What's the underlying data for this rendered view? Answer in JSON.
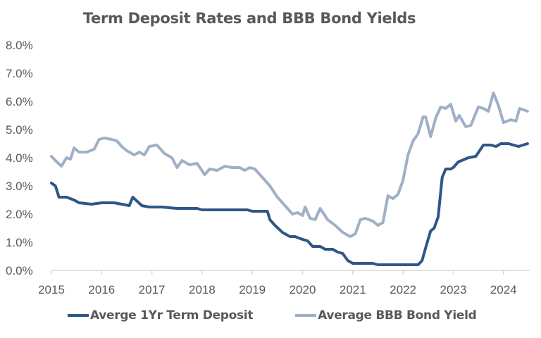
{
  "chart_data": {
    "type": "line",
    "title": "Term Deposit Rates and BBB Bond Yields",
    "xlabel": "",
    "ylabel": "",
    "ylim": [
      0,
      8
    ],
    "xlim": [
      2015,
      2024.5
    ],
    "grid": false,
    "legend_position": "bottom",
    "y_ticks": [
      "0.0%",
      "1.0%",
      "2.0%",
      "3.0%",
      "4.0%",
      "5.0%",
      "6.0%",
      "7.0%",
      "8.0%"
    ],
    "x_ticks": [
      "2015",
      "2016",
      "2017",
      "2018",
      "2019",
      "2020",
      "2021",
      "2022",
      "2023",
      "2024"
    ],
    "series": [
      {
        "name": "Averge 1Yr Term Deposit",
        "color": "#2e5788",
        "x": [
          2015.0,
          2015.08,
          2015.15,
          2015.3,
          2015.45,
          2015.55,
          2015.8,
          2016.0,
          2016.25,
          2016.4,
          2016.55,
          2016.62,
          2016.8,
          2016.95,
          2017.2,
          2017.5,
          2017.6,
          2017.9,
          2018.0,
          2018.3,
          2018.6,
          2018.9,
          2019.0,
          2019.1,
          2019.3,
          2019.35,
          2019.45,
          2019.6,
          2019.75,
          2019.85,
          2020.0,
          2020.1,
          2020.2,
          2020.35,
          2020.45,
          2020.6,
          2020.7,
          2020.8,
          2020.9,
          2021.0,
          2021.2,
          2021.4,
          2021.5,
          2021.8,
          2022.0,
          2022.2,
          2022.3,
          2022.38,
          2022.45,
          2022.55,
          2022.62,
          2022.7,
          2022.78,
          2022.85,
          2022.95,
          2023.0,
          2023.1,
          2023.3,
          2023.45,
          2023.6,
          2023.75,
          2023.85,
          2023.95,
          2024.1,
          2024.3,
          2024.48
        ],
        "values": [
          3.1,
          3.0,
          2.6,
          2.6,
          2.5,
          2.4,
          2.35,
          2.4,
          2.4,
          2.35,
          2.3,
          2.6,
          2.3,
          2.25,
          2.25,
          2.2,
          2.2,
          2.2,
          2.15,
          2.15,
          2.15,
          2.15,
          2.1,
          2.1,
          2.1,
          1.8,
          1.6,
          1.35,
          1.2,
          1.2,
          1.1,
          1.05,
          0.85,
          0.85,
          0.75,
          0.75,
          0.65,
          0.6,
          0.35,
          0.25,
          0.25,
          0.25,
          0.2,
          0.2,
          0.2,
          0.2,
          0.2,
          0.35,
          0.8,
          1.4,
          1.5,
          1.9,
          3.3,
          3.6,
          3.6,
          3.65,
          3.85,
          4.0,
          4.05,
          4.45,
          4.45,
          4.4,
          4.5,
          4.5,
          4.4,
          4.5
        ]
      },
      {
        "name": "Average BBB Bond Yield",
        "color": "#9fb0c6",
        "x": [
          2015.0,
          2015.08,
          2015.2,
          2015.3,
          2015.38,
          2015.45,
          2015.55,
          2015.7,
          2015.85,
          2015.95,
          2016.05,
          2016.2,
          2016.3,
          2016.4,
          2016.5,
          2016.65,
          2016.75,
          2016.85,
          2016.95,
          2017.1,
          2017.25,
          2017.4,
          2017.5,
          2017.6,
          2017.75,
          2017.9,
          2018.05,
          2018.15,
          2018.3,
          2018.45,
          2018.6,
          2018.75,
          2018.85,
          2018.95,
          2019.05,
          2019.2,
          2019.35,
          2019.5,
          2019.6,
          2019.7,
          2019.8,
          2019.9,
          2020.0,
          2020.05,
          2020.15,
          2020.25,
          2020.35,
          2020.5,
          2020.65,
          2020.8,
          2020.95,
          2021.05,
          2021.15,
          2021.25,
          2021.4,
          2021.5,
          2021.6,
          2021.7,
          2021.8,
          2021.9,
          2022.0,
          2022.1,
          2022.2,
          2022.3,
          2022.4,
          2022.45,
          2022.55,
          2022.65,
          2022.75,
          2022.85,
          2022.95,
          2023.05,
          2023.12,
          2023.25,
          2023.35,
          2023.5,
          2023.6,
          2023.7,
          2023.8,
          2023.9,
          2024.0,
          2024.15,
          2024.25,
          2024.32,
          2024.48
        ],
        "values": [
          4.05,
          3.9,
          3.7,
          4.0,
          3.95,
          4.35,
          4.2,
          4.2,
          4.3,
          4.65,
          4.7,
          4.65,
          4.6,
          4.4,
          4.25,
          4.1,
          4.2,
          4.1,
          4.4,
          4.45,
          4.15,
          4.0,
          3.65,
          3.9,
          3.75,
          3.8,
          3.4,
          3.6,
          3.55,
          3.7,
          3.65,
          3.65,
          3.55,
          3.65,
          3.6,
          3.3,
          3.0,
          2.6,
          2.4,
          2.2,
          2.0,
          2.05,
          1.95,
          2.25,
          1.85,
          1.8,
          2.2,
          1.8,
          1.6,
          1.35,
          1.2,
          1.3,
          1.8,
          1.85,
          1.75,
          1.6,
          1.7,
          2.65,
          2.55,
          2.7,
          3.2,
          4.1,
          4.6,
          4.85,
          5.45,
          5.45,
          4.75,
          5.4,
          5.8,
          5.75,
          5.9,
          5.3,
          5.5,
          5.1,
          5.15,
          5.8,
          5.75,
          5.65,
          6.3,
          5.85,
          5.25,
          5.35,
          5.3,
          5.75,
          5.65
        ]
      }
    ]
  },
  "legend": {
    "items": [
      {
        "label": "Averge 1Yr Term Deposit",
        "color": "#2e5788"
      },
      {
        "label": "Average BBB Bond Yield",
        "color": "#9fb0c6"
      }
    ]
  },
  "colors": {
    "axis": "#d9d9d9",
    "text": "#595959"
  }
}
